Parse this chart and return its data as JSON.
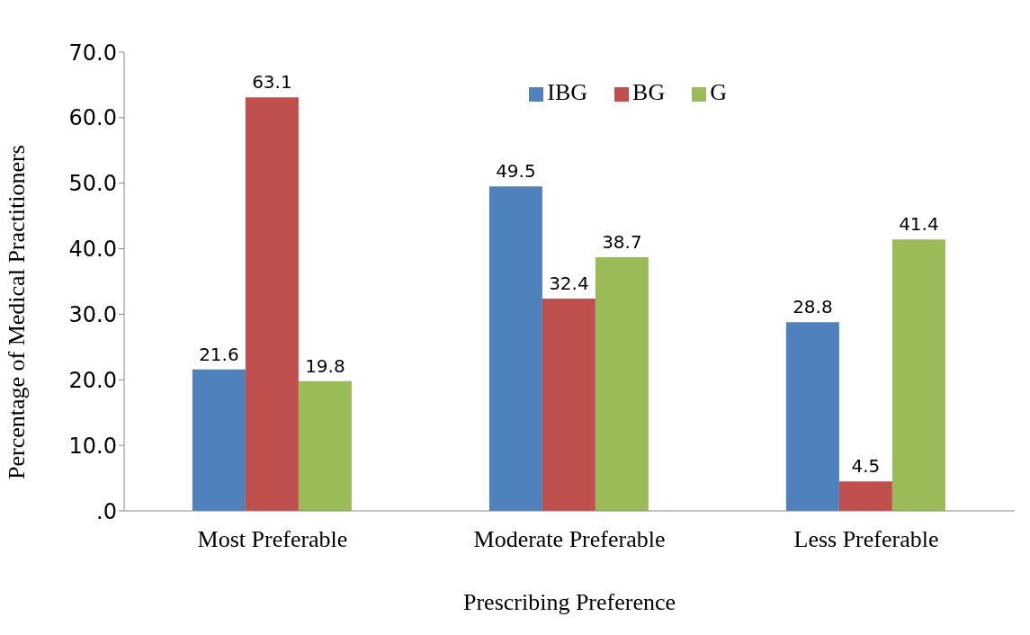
{
  "chart_data": {
    "type": "bar",
    "xlabel": "Prescribing Preference",
    "ylabel": "Percentage of Medical Practitioners",
    "categories": [
      "Most Preferable",
      "Moderate Preferable",
      "Less Preferable"
    ],
    "series": [
      {
        "name": "IBG",
        "color": "#4f81bd",
        "values": [
          21.6,
          49.5,
          28.8
        ]
      },
      {
        "name": "BG",
        "color": "#c0504d",
        "values": [
          63.1,
          32.4,
          4.5
        ]
      },
      {
        "name": "G",
        "color": "#9bbb59",
        "values": [
          19.8,
          38.7,
          41.4
        ]
      }
    ],
    "ylim": [
      0,
      70
    ],
    "yticks": [
      {
        "value": 0,
        "label": ".0"
      },
      {
        "value": 10,
        "label": "10.0"
      },
      {
        "value": 20,
        "label": "20.0"
      },
      {
        "value": 30,
        "label": "30.0"
      },
      {
        "value": 40,
        "label": "40.0"
      },
      {
        "value": 50,
        "label": "50.0"
      },
      {
        "value": 60,
        "label": "60.0"
      },
      {
        "value": 70,
        "label": "70.0"
      }
    ],
    "data_labels": true,
    "legend": "top right",
    "grid": false
  }
}
